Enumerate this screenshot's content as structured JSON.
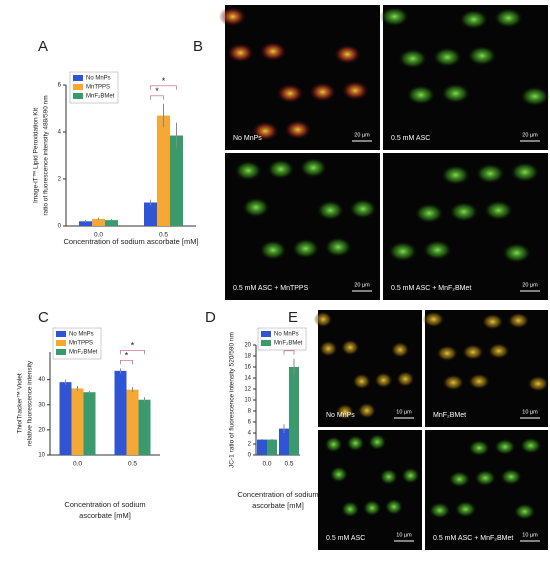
{
  "chart_data": [
    {
      "type": "bar",
      "panel": "A",
      "y_label": [
        "Image-iT™ Lipid Peroxidation Kit",
        "ratio of fluorescence intensity 488/590 nm"
      ],
      "x_label": [
        "Concentration of sodium ascorbate [mM]"
      ],
      "categories": [
        "0.0",
        "0.5"
      ],
      "series": [
        {
          "name": "No MnPs",
          "color": "#2f55d4",
          "values": [
            0.2,
            1.0
          ],
          "errors": [
            0.05,
            0.12
          ]
        },
        {
          "name": "MnTPPS",
          "color": "#f5a833",
          "values": [
            0.3,
            4.7
          ],
          "errors": [
            0.05,
            0.5
          ]
        },
        {
          "name": "MnF₂BMet",
          "color": "#3a9a6e",
          "values": [
            0.25,
            3.85
          ],
          "errors": [
            0.05,
            0.55
          ]
        }
      ],
      "ylim": [
        0,
        6
      ],
      "yticks": [
        0,
        2,
        4,
        6
      ],
      "significance": [
        "*",
        "*"
      ]
    },
    {
      "type": "bar",
      "panel": "C",
      "y_label": [
        "ThiolTracker™ Violet",
        "relative fluorescence intensity"
      ],
      "x_label": [
        "Concentration of sodium",
        "ascorbate [mM]"
      ],
      "categories": [
        "0.0",
        "0.5"
      ],
      "series": [
        {
          "name": "No MnPs",
          "color": "#2f55d4",
          "values": [
            39,
            43.5
          ],
          "errors": [
            1,
            1
          ]
        },
        {
          "name": "MnTPPS",
          "color": "#f5a833",
          "values": [
            36.5,
            36
          ],
          "errors": [
            1,
            1
          ]
        },
        {
          "name": "MnF₂BMet",
          "color": "#3a9a6e",
          "values": [
            35,
            32
          ],
          "errors": [
            0.5,
            1
          ]
        }
      ],
      "ylim": [
        10,
        51
      ],
      "yticks": [
        10,
        20,
        30,
        40
      ],
      "significance": [
        "*",
        "*"
      ]
    },
    {
      "type": "bar",
      "panel": "D",
      "y_label": [
        "JC-1 ratio of fluorescence intensity 520/590 nm"
      ],
      "x_label": [
        "Concentration of sodium",
        "ascorbate [mM]"
      ],
      "categories": [
        "0.0",
        "0.5"
      ],
      "series": [
        {
          "name": "No MnPs",
          "color": "#2f55d4",
          "values": [
            2.8,
            4.8
          ],
          "errors": [
            0.1,
            0.8
          ]
        },
        {
          "name": "MnF₂BMet",
          "color": "#3a9a6e",
          "values": [
            2.8,
            16
          ],
          "errors": [
            0.1,
            1.5
          ]
        }
      ],
      "ylim": [
        0,
        20
      ],
      "yticks": [
        0,
        2,
        4,
        6,
        8,
        10,
        12,
        14,
        16,
        18,
        20
      ],
      "significance": [
        "*"
      ]
    }
  ],
  "images": {
    "B": {
      "panel": "B",
      "labels": [
        "No MnPs",
        "0.5 mM ASC",
        "0.5 mM ASC + MnTPPS",
        "0.5 mM ASC + MnF₂BMet"
      ],
      "scale": "20 µm"
    },
    "E": {
      "panel": "E",
      "labels": [
        "No MnPs",
        "MnF₂BMet",
        "0.5 mM ASC",
        "0.5 mM ASC + MnF₂BMet"
      ],
      "scale": "10 µm"
    }
  }
}
